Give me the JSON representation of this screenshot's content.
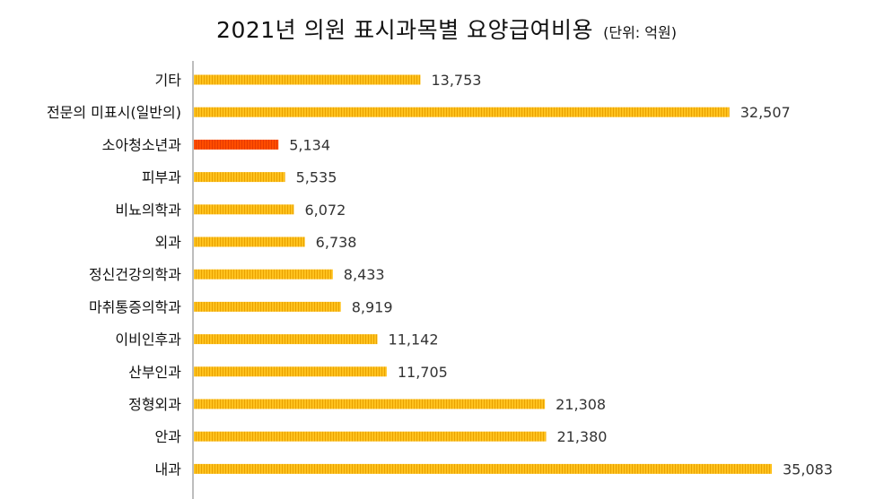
{
  "title": "2021년 의원 표시과목별 요양급여비용",
  "unit": "(단위: 억원)",
  "colors": {
    "bar": "#FFC21E",
    "bar_stripe": "#E9A200",
    "highlight": "#FF4D00",
    "highlight_stripe": "#E63A00",
    "axis": "#BDBDBD"
  },
  "chart_data": {
    "type": "bar",
    "orientation": "horizontal",
    "title": "2021년 의원 표시과목별 요양급여비용",
    "unit": "억원",
    "xlim": [
      0,
      36000
    ],
    "highlight": "소아청소년과",
    "categories": [
      "기타",
      "전문의 미표시(일반의)",
      "소아청소년과",
      "피부과",
      "비뇨의학과",
      "외과",
      "정신건강의학과",
      "마취통증의학과",
      "이비인후과",
      "산부인과",
      "정형외과",
      "안과",
      "내과"
    ],
    "values": [
      13753,
      32507,
      5134,
      5535,
      6072,
      6738,
      8433,
      8919,
      11142,
      11705,
      21308,
      21380,
      35083
    ],
    "value_labels": [
      "13,753",
      "32,507",
      "5,134",
      "5,535",
      "6,072",
      "6,738",
      "8,433",
      "8,919",
      "11,142",
      "11,705",
      "21,308",
      "21,380",
      "35,083"
    ]
  }
}
